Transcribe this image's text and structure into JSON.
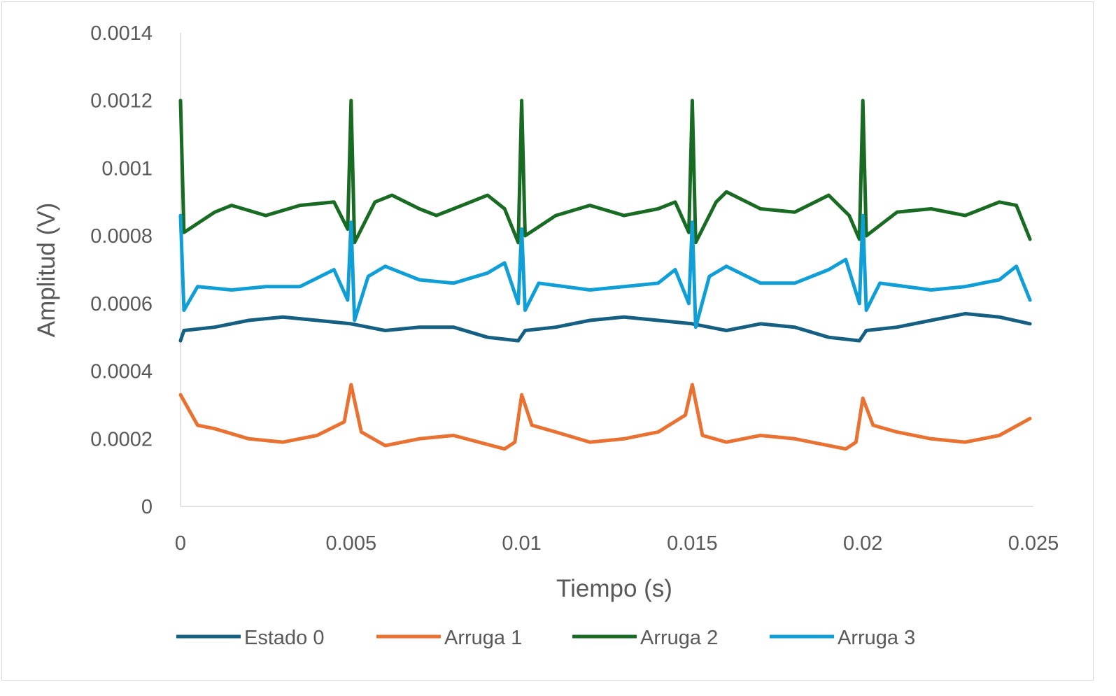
{
  "chart_data": {
    "type": "line",
    "title": "",
    "xlabel": "Tiempo (s)",
    "ylabel": "Amplitud (V)",
    "xlim": [
      0,
      0.025
    ],
    "ylim": [
      0,
      0.0014
    ],
    "xticks": [
      "0",
      "0.005",
      "0.01",
      "0.015",
      "0.02",
      "0.025"
    ],
    "xtick_values": [
      0,
      0.005,
      0.01,
      0.015,
      0.02,
      0.025
    ],
    "yticks": [
      "0",
      "0.0002",
      "0.0004",
      "0.0006",
      "0.0008",
      "0.001",
      "0.0012",
      "0.0014"
    ],
    "ytick_values": [
      0,
      0.0002,
      0.0004,
      0.0006,
      0.0008,
      0.001,
      0.0012,
      0.0014
    ],
    "grid": false,
    "legend_position": "bottom",
    "series": [
      {
        "name": "Estado 0",
        "color": "#156082",
        "points": [
          [
            0,
            0.00049
          ],
          [
            0.0001,
            0.00052
          ],
          [
            0.001,
            0.00053
          ],
          [
            0.002,
            0.00055
          ],
          [
            0.003,
            0.00056
          ],
          [
            0.004,
            0.00055
          ],
          [
            0.005,
            0.00054
          ],
          [
            0.006,
            0.00052
          ],
          [
            0.007,
            0.00053
          ],
          [
            0.008,
            0.00053
          ],
          [
            0.009,
            0.0005
          ],
          [
            0.0099,
            0.00049
          ],
          [
            0.0101,
            0.00052
          ],
          [
            0.011,
            0.00053
          ],
          [
            0.012,
            0.00055
          ],
          [
            0.013,
            0.00056
          ],
          [
            0.014,
            0.00055
          ],
          [
            0.015,
            0.00054
          ],
          [
            0.016,
            0.00052
          ],
          [
            0.017,
            0.00054
          ],
          [
            0.018,
            0.00053
          ],
          [
            0.019,
            0.0005
          ],
          [
            0.0199,
            0.00049
          ],
          [
            0.0201,
            0.00052
          ],
          [
            0.021,
            0.00053
          ],
          [
            0.022,
            0.00055
          ],
          [
            0.023,
            0.00057
          ],
          [
            0.024,
            0.00056
          ],
          [
            0.0249,
            0.00054
          ]
        ]
      },
      {
        "name": "Arruga 1",
        "color": "#E97132",
        "points": [
          [
            0,
            0.00033
          ],
          [
            0.0005,
            0.00024
          ],
          [
            0.001,
            0.00023
          ],
          [
            0.002,
            0.0002
          ],
          [
            0.003,
            0.00019
          ],
          [
            0.004,
            0.00021
          ],
          [
            0.0048,
            0.00025
          ],
          [
            0.005,
            0.00036
          ],
          [
            0.0053,
            0.00022
          ],
          [
            0.006,
            0.00018
          ],
          [
            0.007,
            0.0002
          ],
          [
            0.008,
            0.00021
          ],
          [
            0.0095,
            0.00017
          ],
          [
            0.0098,
            0.00019
          ],
          [
            0.01,
            0.00033
          ],
          [
            0.0103,
            0.00024
          ],
          [
            0.011,
            0.00022
          ],
          [
            0.012,
            0.00019
          ],
          [
            0.013,
            0.0002
          ],
          [
            0.014,
            0.00022
          ],
          [
            0.0148,
            0.00027
          ],
          [
            0.015,
            0.00036
          ],
          [
            0.0153,
            0.00021
          ],
          [
            0.016,
            0.00019
          ],
          [
            0.017,
            0.00021
          ],
          [
            0.018,
            0.0002
          ],
          [
            0.0195,
            0.00017
          ],
          [
            0.0198,
            0.00019
          ],
          [
            0.02,
            0.00032
          ],
          [
            0.0203,
            0.00024
          ],
          [
            0.021,
            0.00022
          ],
          [
            0.022,
            0.0002
          ],
          [
            0.023,
            0.00019
          ],
          [
            0.024,
            0.00021
          ],
          [
            0.0249,
            0.00026
          ]
        ]
      },
      {
        "name": "Arruga 2",
        "color": "#196B24",
        "points": [
          [
            0,
            0.0012
          ],
          [
            0.0001,
            0.00081
          ],
          [
            0.001,
            0.00087
          ],
          [
            0.0015,
            0.00089
          ],
          [
            0.0025,
            0.00086
          ],
          [
            0.0035,
            0.00089
          ],
          [
            0.0045,
            0.0009
          ],
          [
            0.0049,
            0.00082
          ],
          [
            0.005,
            0.0012
          ],
          [
            0.0051,
            0.00078
          ],
          [
            0.0057,
            0.0009
          ],
          [
            0.0062,
            0.00092
          ],
          [
            0.007,
            0.00088
          ],
          [
            0.0075,
            0.00086
          ],
          [
            0.0085,
            0.0009
          ],
          [
            0.009,
            0.00092
          ],
          [
            0.0095,
            0.00088
          ],
          [
            0.0099,
            0.00078
          ],
          [
            0.01,
            0.0012
          ],
          [
            0.0101,
            0.0008
          ],
          [
            0.011,
            0.00086
          ],
          [
            0.012,
            0.00089
          ],
          [
            0.013,
            0.00086
          ],
          [
            0.014,
            0.00088
          ],
          [
            0.0145,
            0.0009
          ],
          [
            0.0149,
            0.00081
          ],
          [
            0.015,
            0.0012
          ],
          [
            0.0151,
            0.00078
          ],
          [
            0.0157,
            0.0009
          ],
          [
            0.016,
            0.00093
          ],
          [
            0.017,
            0.00088
          ],
          [
            0.018,
            0.00087
          ],
          [
            0.019,
            0.00092
          ],
          [
            0.0196,
            0.00086
          ],
          [
            0.0199,
            0.00079
          ],
          [
            0.02,
            0.0012
          ],
          [
            0.0201,
            0.0008
          ],
          [
            0.021,
            0.00087
          ],
          [
            0.022,
            0.00088
          ],
          [
            0.023,
            0.00086
          ],
          [
            0.024,
            0.0009
          ],
          [
            0.0245,
            0.00089
          ],
          [
            0.0249,
            0.00079
          ]
        ]
      },
      {
        "name": "Arruga 3",
        "color": "#0F9ED5",
        "points": [
          [
            0,
            0.00086
          ],
          [
            0.0001,
            0.00058
          ],
          [
            0.0005,
            0.00065
          ],
          [
            0.0015,
            0.00064
          ],
          [
            0.0025,
            0.00065
          ],
          [
            0.0035,
            0.00065
          ],
          [
            0.0045,
            0.0007
          ],
          [
            0.0049,
            0.00061
          ],
          [
            0.005,
            0.00084
          ],
          [
            0.0051,
            0.00055
          ],
          [
            0.0055,
            0.00068
          ],
          [
            0.006,
            0.00071
          ],
          [
            0.007,
            0.00067
          ],
          [
            0.008,
            0.00066
          ],
          [
            0.009,
            0.00069
          ],
          [
            0.0095,
            0.00072
          ],
          [
            0.0099,
            0.0006
          ],
          [
            0.01,
            0.00082
          ],
          [
            0.0101,
            0.00058
          ],
          [
            0.0105,
            0.00066
          ],
          [
            0.012,
            0.00064
          ],
          [
            0.013,
            0.00065
          ],
          [
            0.014,
            0.00066
          ],
          [
            0.0145,
            0.0007
          ],
          [
            0.0149,
            0.0006
          ],
          [
            0.015,
            0.00084
          ],
          [
            0.0151,
            0.00053
          ],
          [
            0.0155,
            0.00068
          ],
          [
            0.016,
            0.00071
          ],
          [
            0.017,
            0.00066
          ],
          [
            0.018,
            0.00066
          ],
          [
            0.019,
            0.0007
          ],
          [
            0.0195,
            0.00073
          ],
          [
            0.0199,
            0.0006
          ],
          [
            0.02,
            0.00086
          ],
          [
            0.0201,
            0.00058
          ],
          [
            0.0205,
            0.00066
          ],
          [
            0.022,
            0.00064
          ],
          [
            0.023,
            0.00065
          ],
          [
            0.024,
            0.00067
          ],
          [
            0.0245,
            0.00071
          ],
          [
            0.0249,
            0.00061
          ]
        ]
      }
    ]
  }
}
